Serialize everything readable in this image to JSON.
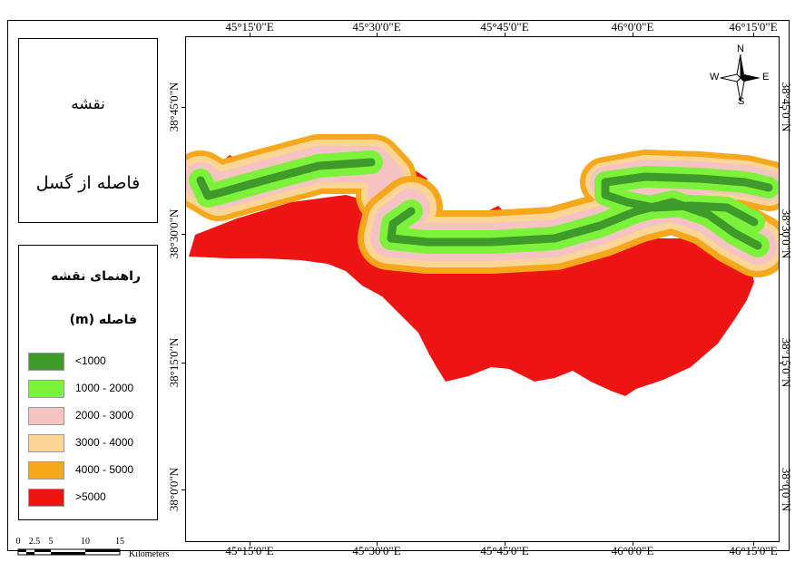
{
  "title": {
    "line1": "نقشه",
    "line2": "فاصله از گسل"
  },
  "legend": {
    "title": "راهنمای نقشه",
    "subtitle": "فاصله  (m)",
    "items": [
      {
        "label": "<1000",
        "color": "#3f9a2c"
      },
      {
        "label": "1000 - 2000",
        "color": "#7cf23a"
      },
      {
        "label": "2000 - 3000",
        "color": "#f6c3c3"
      },
      {
        "label": "3000 - 4000",
        "color": "#fbd596"
      },
      {
        "label": "4000 - 5000",
        "color": "#f6a81a"
      },
      {
        "label": ">5000",
        "color": "#ef1414"
      }
    ]
  },
  "graticule": {
    "longitude_labels": [
      "45°15'0\"E",
      "45°30'0\"E",
      "45°45'0\"E",
      "46°0'0\"E",
      "46°15'0\"E"
    ],
    "latitude_labels": [
      "38°45'0\"N",
      "38°30'0\"N",
      "38°15'0\"N",
      "38°0'0\"N"
    ]
  },
  "north_arrow": {
    "n": "N",
    "s": "S",
    "e": "E",
    "w": "W"
  },
  "scale_bar": {
    "ticks": [
      "0",
      "2.5",
      "5",
      "10",
      "15"
    ],
    "units": "Kilometers"
  }
}
